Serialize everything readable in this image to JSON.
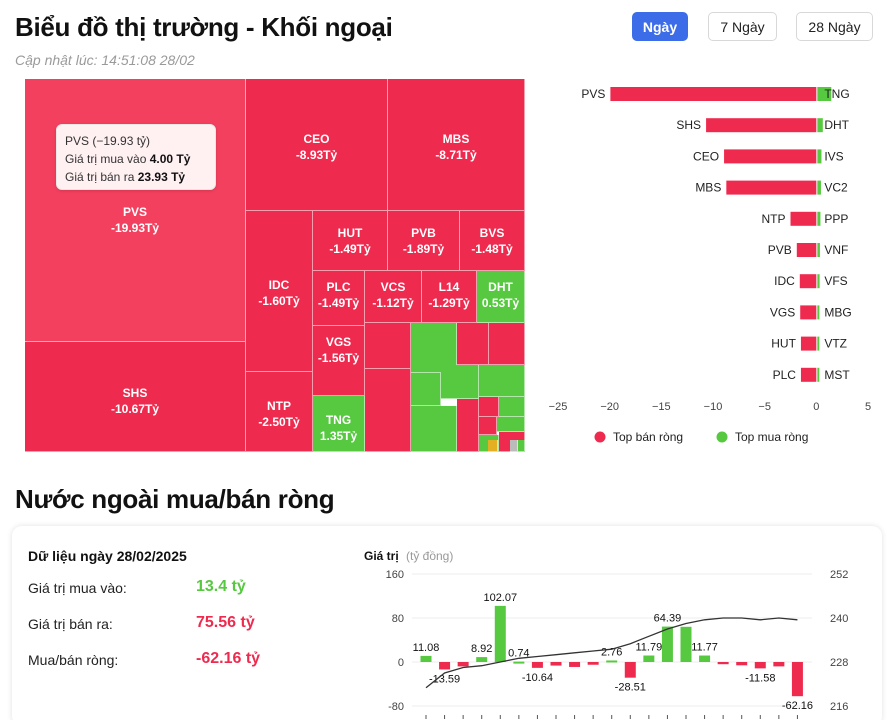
{
  "header": {
    "title": "Biểu đồ thị trường - Khối ngoại",
    "updated": "Cập nhật lúc: 14:51:08 28/02"
  },
  "tabs": [
    {
      "label": "Ngày",
      "active": true
    },
    {
      "label": "7 Ngày",
      "active": false
    },
    {
      "label": "28 Ngày",
      "active": false
    }
  ],
  "colors": {
    "sell": "#ee2b4f",
    "sell_big": "#f4405f",
    "buy": "#56c940",
    "accent": "#3c6ce8",
    "line": "#333333",
    "tiny_gray": "#bbbbbb",
    "tiny_yellow": "#e4b023"
  },
  "treemap": {
    "tooltip": {
      "title": "PVS (−19.93 tỷ)",
      "buy_label": "Giá trị mua vào",
      "buy_value": "4.00 Tỷ",
      "sell_label": "Giá trị bán ra",
      "sell_value": "23.93 Tỷ"
    },
    "cells": [
      {
        "code": "PVS",
        "value": "-19.93Tỷ",
        "side": "sell"
      },
      {
        "code": "SHS",
        "value": "-10.67Tỷ",
        "side": "sell"
      },
      {
        "code": "CEO",
        "value": "-8.93Tỷ",
        "side": "sell"
      },
      {
        "code": "MBS",
        "value": "-8.71Tỷ",
        "side": "sell"
      },
      {
        "code": "IDC",
        "value": "-1.60Tỷ",
        "side": "sell"
      },
      {
        "code": "NTP",
        "value": "-2.50Tỷ",
        "side": "sell"
      },
      {
        "code": "HUT",
        "value": "-1.49Tỷ",
        "side": "sell"
      },
      {
        "code": "PVB",
        "value": "-1.89Tỷ",
        "side": "sell"
      },
      {
        "code": "BVS",
        "value": "-1.48Tỷ",
        "side": "sell"
      },
      {
        "code": "PLC",
        "value": "-1.49Tỷ",
        "side": "sell"
      },
      {
        "code": "VCS",
        "value": "-1.12Tỷ",
        "side": "sell"
      },
      {
        "code": "L14",
        "value": "-1.29Tỷ",
        "side": "sell"
      },
      {
        "code": "DHT",
        "value": "0.53Tỷ",
        "side": "buy"
      },
      {
        "code": "VGS",
        "value": "-1.56Tỷ",
        "side": "sell"
      },
      {
        "code": "TNG",
        "value": "1.35Tỷ",
        "side": "buy"
      }
    ]
  },
  "chart_data": [
    {
      "type": "bar",
      "title": "",
      "orientation": "horizontal",
      "legend_position": "bottom",
      "legend": [
        {
          "name": "Top bán ròng",
          "color": "#ee2b4f"
        },
        {
          "name": "Top mua ròng",
          "color": "#56c940"
        }
      ],
      "x_ticks": [
        -25,
        -20,
        -15,
        -10,
        -5,
        0,
        5
      ],
      "xlim": [
        -25,
        5
      ],
      "rows": [
        {
          "sell": "PVS",
          "sell_value": -19.93,
          "buy": "TNG",
          "buy_value": 1.35
        },
        {
          "sell": "SHS",
          "sell_value": -10.67,
          "buy": "DHT",
          "buy_value": 0.53
        },
        {
          "sell": "CEO",
          "sell_value": -8.93,
          "buy": "IVS",
          "buy_value": 0.4
        },
        {
          "sell": "MBS",
          "sell_value": -8.71,
          "buy": "VC2",
          "buy_value": 0.35
        },
        {
          "sell": "NTP",
          "sell_value": -2.5,
          "buy": "PPP",
          "buy_value": 0.3
        },
        {
          "sell": "PVB",
          "sell_value": -1.89,
          "buy": "VNF",
          "buy_value": 0.25
        },
        {
          "sell": "IDC",
          "sell_value": -1.6,
          "buy": "VFS",
          "buy_value": 0.22
        },
        {
          "sell": "VGS",
          "sell_value": -1.56,
          "buy": "MBG",
          "buy_value": 0.2
        },
        {
          "sell": "HUT",
          "sell_value": -1.49,
          "buy": "VTZ",
          "buy_value": 0.18
        },
        {
          "sell": "PLC",
          "sell_value": -1.49,
          "buy": "MST",
          "buy_value": 0.15
        }
      ]
    },
    {
      "type": "bar",
      "title": "",
      "ylabel": "Giá trị",
      "ylabel_unit": "(tỷ đồng)",
      "ylim": [
        -80,
        160
      ],
      "y_ticks": [
        160,
        80,
        0,
        -80
      ],
      "y2lim": [
        216,
        252
      ],
      "y2_ticks": [
        252,
        240,
        228,
        216
      ],
      "values": [
        11.08,
        -13.59,
        -8.0,
        8.92,
        102.07,
        0.74,
        -10.64,
        -6.5,
        -9.0,
        -5.0,
        2.76,
        -28.51,
        11.79,
        64.39,
        64.0,
        11.77,
        -4.0,
        -6.0,
        -11.58,
        -8.0,
        -62.16
      ],
      "labels": [
        "11.08",
        "-13.59",
        "",
        "8.92",
        "102.07",
        "0.74",
        "-10.64",
        "",
        "",
        "",
        "2.76",
        "-28.51",
        "11.79",
        "64.39",
        "",
        "11.77",
        "",
        "",
        "-11.58",
        "",
        "-62.16"
      ],
      "line_series": {
        "values": [
          221,
          225,
          226.5,
          227,
          228,
          229,
          229.5,
          230,
          230.5,
          231,
          231.5,
          233,
          235,
          237,
          238.5,
          239.5,
          240,
          240,
          239.5,
          240,
          239.5
        ]
      }
    }
  ],
  "net_panel": {
    "date_label": "Dữ liệu ngày 28/02/2025",
    "rows": [
      {
        "label": "Giá trị mua vào:",
        "value": "13.4 tỷ",
        "color": "#56c940"
      },
      {
        "label": "Giá trị bán ra:",
        "value": "75.56 tỷ",
        "color": "#ee2b4f"
      },
      {
        "label": "Mua/bán ròng:",
        "value": "-62.16 tỷ",
        "color": "#ee2b4f"
      }
    ]
  },
  "section": {
    "title": "Nước ngoài mua/bán ròng"
  }
}
